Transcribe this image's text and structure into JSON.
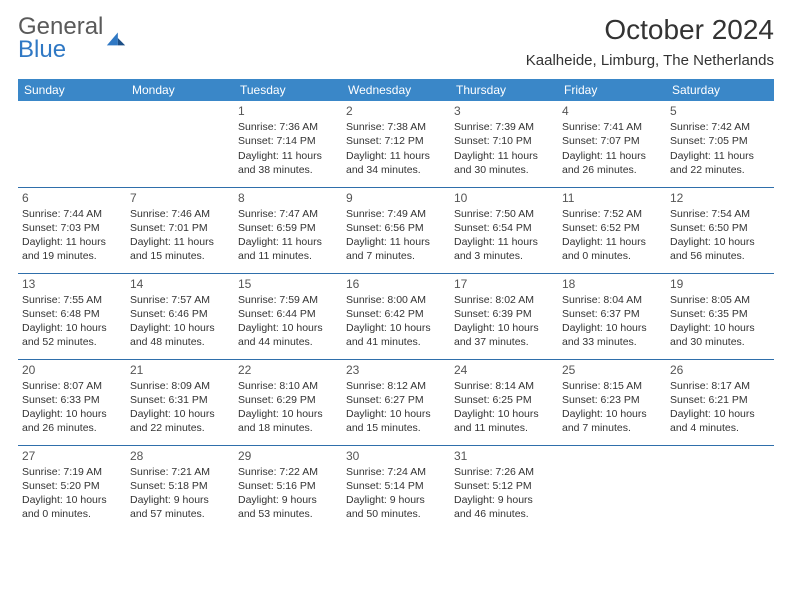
{
  "logo": {
    "text1": "General",
    "text2": "Blue"
  },
  "title": "October 2024",
  "location": "Kaalheide, Limburg, The Netherlands",
  "colors": {
    "header_bg": "#3a87c8",
    "header_fg": "#ffffff",
    "border": "#2f6fab",
    "text": "#333333"
  },
  "day_headers": [
    "Sunday",
    "Monday",
    "Tuesday",
    "Wednesday",
    "Thursday",
    "Friday",
    "Saturday"
  ],
  "weeks": [
    [
      null,
      null,
      {
        "n": "1",
        "sr": "Sunrise: 7:36 AM",
        "ss": "Sunset: 7:14 PM",
        "d1": "Daylight: 11 hours",
        "d2": "and 38 minutes."
      },
      {
        "n": "2",
        "sr": "Sunrise: 7:38 AM",
        "ss": "Sunset: 7:12 PM",
        "d1": "Daylight: 11 hours",
        "d2": "and 34 minutes."
      },
      {
        "n": "3",
        "sr": "Sunrise: 7:39 AM",
        "ss": "Sunset: 7:10 PM",
        "d1": "Daylight: 11 hours",
        "d2": "and 30 minutes."
      },
      {
        "n": "4",
        "sr": "Sunrise: 7:41 AM",
        "ss": "Sunset: 7:07 PM",
        "d1": "Daylight: 11 hours",
        "d2": "and 26 minutes."
      },
      {
        "n": "5",
        "sr": "Sunrise: 7:42 AM",
        "ss": "Sunset: 7:05 PM",
        "d1": "Daylight: 11 hours",
        "d2": "and 22 minutes."
      }
    ],
    [
      {
        "n": "6",
        "sr": "Sunrise: 7:44 AM",
        "ss": "Sunset: 7:03 PM",
        "d1": "Daylight: 11 hours",
        "d2": "and 19 minutes."
      },
      {
        "n": "7",
        "sr": "Sunrise: 7:46 AM",
        "ss": "Sunset: 7:01 PM",
        "d1": "Daylight: 11 hours",
        "d2": "and 15 minutes."
      },
      {
        "n": "8",
        "sr": "Sunrise: 7:47 AM",
        "ss": "Sunset: 6:59 PM",
        "d1": "Daylight: 11 hours",
        "d2": "and 11 minutes."
      },
      {
        "n": "9",
        "sr": "Sunrise: 7:49 AM",
        "ss": "Sunset: 6:56 PM",
        "d1": "Daylight: 11 hours",
        "d2": "and 7 minutes."
      },
      {
        "n": "10",
        "sr": "Sunrise: 7:50 AM",
        "ss": "Sunset: 6:54 PM",
        "d1": "Daylight: 11 hours",
        "d2": "and 3 minutes."
      },
      {
        "n": "11",
        "sr": "Sunrise: 7:52 AM",
        "ss": "Sunset: 6:52 PM",
        "d1": "Daylight: 11 hours",
        "d2": "and 0 minutes."
      },
      {
        "n": "12",
        "sr": "Sunrise: 7:54 AM",
        "ss": "Sunset: 6:50 PM",
        "d1": "Daylight: 10 hours",
        "d2": "and 56 minutes."
      }
    ],
    [
      {
        "n": "13",
        "sr": "Sunrise: 7:55 AM",
        "ss": "Sunset: 6:48 PM",
        "d1": "Daylight: 10 hours",
        "d2": "and 52 minutes."
      },
      {
        "n": "14",
        "sr": "Sunrise: 7:57 AM",
        "ss": "Sunset: 6:46 PM",
        "d1": "Daylight: 10 hours",
        "d2": "and 48 minutes."
      },
      {
        "n": "15",
        "sr": "Sunrise: 7:59 AM",
        "ss": "Sunset: 6:44 PM",
        "d1": "Daylight: 10 hours",
        "d2": "and 44 minutes."
      },
      {
        "n": "16",
        "sr": "Sunrise: 8:00 AM",
        "ss": "Sunset: 6:42 PM",
        "d1": "Daylight: 10 hours",
        "d2": "and 41 minutes."
      },
      {
        "n": "17",
        "sr": "Sunrise: 8:02 AM",
        "ss": "Sunset: 6:39 PM",
        "d1": "Daylight: 10 hours",
        "d2": "and 37 minutes."
      },
      {
        "n": "18",
        "sr": "Sunrise: 8:04 AM",
        "ss": "Sunset: 6:37 PM",
        "d1": "Daylight: 10 hours",
        "d2": "and 33 minutes."
      },
      {
        "n": "19",
        "sr": "Sunrise: 8:05 AM",
        "ss": "Sunset: 6:35 PM",
        "d1": "Daylight: 10 hours",
        "d2": "and 30 minutes."
      }
    ],
    [
      {
        "n": "20",
        "sr": "Sunrise: 8:07 AM",
        "ss": "Sunset: 6:33 PM",
        "d1": "Daylight: 10 hours",
        "d2": "and 26 minutes."
      },
      {
        "n": "21",
        "sr": "Sunrise: 8:09 AM",
        "ss": "Sunset: 6:31 PM",
        "d1": "Daylight: 10 hours",
        "d2": "and 22 minutes."
      },
      {
        "n": "22",
        "sr": "Sunrise: 8:10 AM",
        "ss": "Sunset: 6:29 PM",
        "d1": "Daylight: 10 hours",
        "d2": "and 18 minutes."
      },
      {
        "n": "23",
        "sr": "Sunrise: 8:12 AM",
        "ss": "Sunset: 6:27 PM",
        "d1": "Daylight: 10 hours",
        "d2": "and 15 minutes."
      },
      {
        "n": "24",
        "sr": "Sunrise: 8:14 AM",
        "ss": "Sunset: 6:25 PM",
        "d1": "Daylight: 10 hours",
        "d2": "and 11 minutes."
      },
      {
        "n": "25",
        "sr": "Sunrise: 8:15 AM",
        "ss": "Sunset: 6:23 PM",
        "d1": "Daylight: 10 hours",
        "d2": "and 7 minutes."
      },
      {
        "n": "26",
        "sr": "Sunrise: 8:17 AM",
        "ss": "Sunset: 6:21 PM",
        "d1": "Daylight: 10 hours",
        "d2": "and 4 minutes."
      }
    ],
    [
      {
        "n": "27",
        "sr": "Sunrise: 7:19 AM",
        "ss": "Sunset: 5:20 PM",
        "d1": "Daylight: 10 hours",
        "d2": "and 0 minutes."
      },
      {
        "n": "28",
        "sr": "Sunrise: 7:21 AM",
        "ss": "Sunset: 5:18 PM",
        "d1": "Daylight: 9 hours",
        "d2": "and 57 minutes."
      },
      {
        "n": "29",
        "sr": "Sunrise: 7:22 AM",
        "ss": "Sunset: 5:16 PM",
        "d1": "Daylight: 9 hours",
        "d2": "and 53 minutes."
      },
      {
        "n": "30",
        "sr": "Sunrise: 7:24 AM",
        "ss": "Sunset: 5:14 PM",
        "d1": "Daylight: 9 hours",
        "d2": "and 50 minutes."
      },
      {
        "n": "31",
        "sr": "Sunrise: 7:26 AM",
        "ss": "Sunset: 5:12 PM",
        "d1": "Daylight: 9 hours",
        "d2": "and 46 minutes."
      },
      null,
      null
    ]
  ]
}
